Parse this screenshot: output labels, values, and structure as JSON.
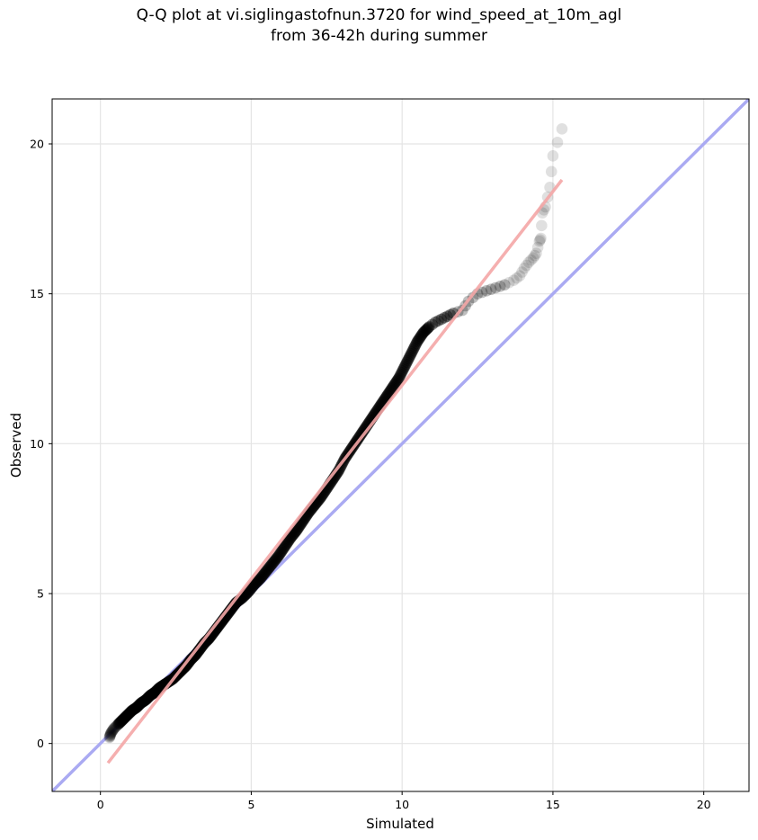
{
  "title": {
    "line1": "Q-Q plot at vi.siglingastofnun.3720 for wind_speed_at_10m_agl",
    "line2": "from 36-42h during summer"
  },
  "chart_data": {
    "type": "scatter",
    "xlabel": "Simulated",
    "ylabel": "Observed",
    "xlim": [
      -1.6,
      21.5
    ],
    "ylim": [
      -1.6,
      21.5
    ],
    "xticks": [
      0,
      5,
      10,
      15,
      20
    ],
    "yticks": [
      0,
      5,
      10,
      15,
      20
    ],
    "grid": true,
    "reference_line": {
      "name": "",
      "slope": 1,
      "intercept": 0,
      "color": "#aaaaf2"
    },
    "fit_line": {
      "name": "",
      "x": [
        0.25,
        15.3
      ],
      "y": [
        -0.65,
        18.8
      ],
      "color": "#f4a6a6"
    },
    "series": [
      {
        "name": "",
        "color": "#000000",
        "points": [
          [
            0.3,
            0.2
          ],
          [
            0.35,
            0.35
          ],
          [
            0.45,
            0.5
          ],
          [
            0.6,
            0.65
          ],
          [
            0.75,
            0.8
          ],
          [
            0.9,
            0.95
          ],
          [
            1.05,
            1.1
          ],
          [
            1.2,
            1.2
          ],
          [
            1.35,
            1.35
          ],
          [
            1.5,
            1.45
          ],
          [
            1.65,
            1.6
          ],
          [
            1.8,
            1.7
          ],
          [
            1.95,
            1.85
          ],
          [
            2.1,
            1.95
          ],
          [
            2.25,
            2.05
          ],
          [
            2.4,
            2.15
          ],
          [
            2.55,
            2.3
          ],
          [
            2.7,
            2.45
          ],
          [
            2.85,
            2.6
          ],
          [
            3.0,
            2.8
          ],
          [
            3.15,
            2.95
          ],
          [
            3.3,
            3.15
          ],
          [
            3.45,
            3.35
          ],
          [
            3.6,
            3.5
          ],
          [
            3.75,
            3.7
          ],
          [
            3.9,
            3.9
          ],
          [
            4.05,
            4.1
          ],
          [
            4.2,
            4.3
          ],
          [
            4.35,
            4.5
          ],
          [
            4.5,
            4.7
          ],
          [
            4.7,
            4.85
          ],
          [
            4.9,
            5.05
          ],
          [
            5.1,
            5.3
          ],
          [
            5.3,
            5.5
          ],
          [
            5.5,
            5.75
          ],
          [
            5.7,
            6.0
          ],
          [
            5.9,
            6.25
          ],
          [
            6.1,
            6.55
          ],
          [
            6.3,
            6.85
          ],
          [
            6.5,
            7.1
          ],
          [
            6.7,
            7.4
          ],
          [
            6.9,
            7.7
          ],
          [
            7.1,
            7.95
          ],
          [
            7.3,
            8.2
          ],
          [
            7.5,
            8.5
          ],
          [
            7.7,
            8.8
          ],
          [
            7.9,
            9.1
          ],
          [
            8.1,
            9.5
          ],
          [
            8.3,
            9.8
          ],
          [
            8.5,
            10.1
          ],
          [
            8.7,
            10.4
          ],
          [
            8.9,
            10.7
          ],
          [
            9.1,
            11.0
          ],
          [
            9.3,
            11.3
          ],
          [
            9.5,
            11.6
          ],
          [
            9.7,
            11.9
          ],
          [
            9.9,
            12.2
          ],
          [
            10.1,
            12.6
          ],
          [
            10.3,
            13.0
          ],
          [
            10.5,
            13.4
          ],
          [
            10.7,
            13.7
          ],
          [
            10.9,
            13.9
          ],
          [
            11.1,
            14.05
          ],
          [
            11.3,
            14.15
          ],
          [
            11.5,
            14.25
          ],
          [
            11.7,
            14.35
          ],
          [
            12.0,
            14.45
          ],
          [
            12.2,
            14.75
          ],
          [
            12.5,
            15.0
          ],
          [
            12.8,
            15.1
          ],
          [
            13.1,
            15.2
          ],
          [
            13.4,
            15.3
          ],
          [
            13.7,
            15.45
          ],
          [
            13.9,
            15.6
          ],
          [
            14.05,
            15.85
          ],
          [
            14.2,
            16.05
          ],
          [
            14.35,
            16.2
          ],
          [
            14.45,
            16.35
          ],
          [
            14.55,
            16.75
          ],
          [
            14.6,
            16.85
          ],
          [
            14.65,
            17.7
          ],
          [
            14.75,
            17.9
          ],
          [
            14.9,
            18.55
          ],
          [
            15.0,
            19.6
          ],
          [
            15.3,
            20.5
          ]
        ]
      }
    ]
  }
}
